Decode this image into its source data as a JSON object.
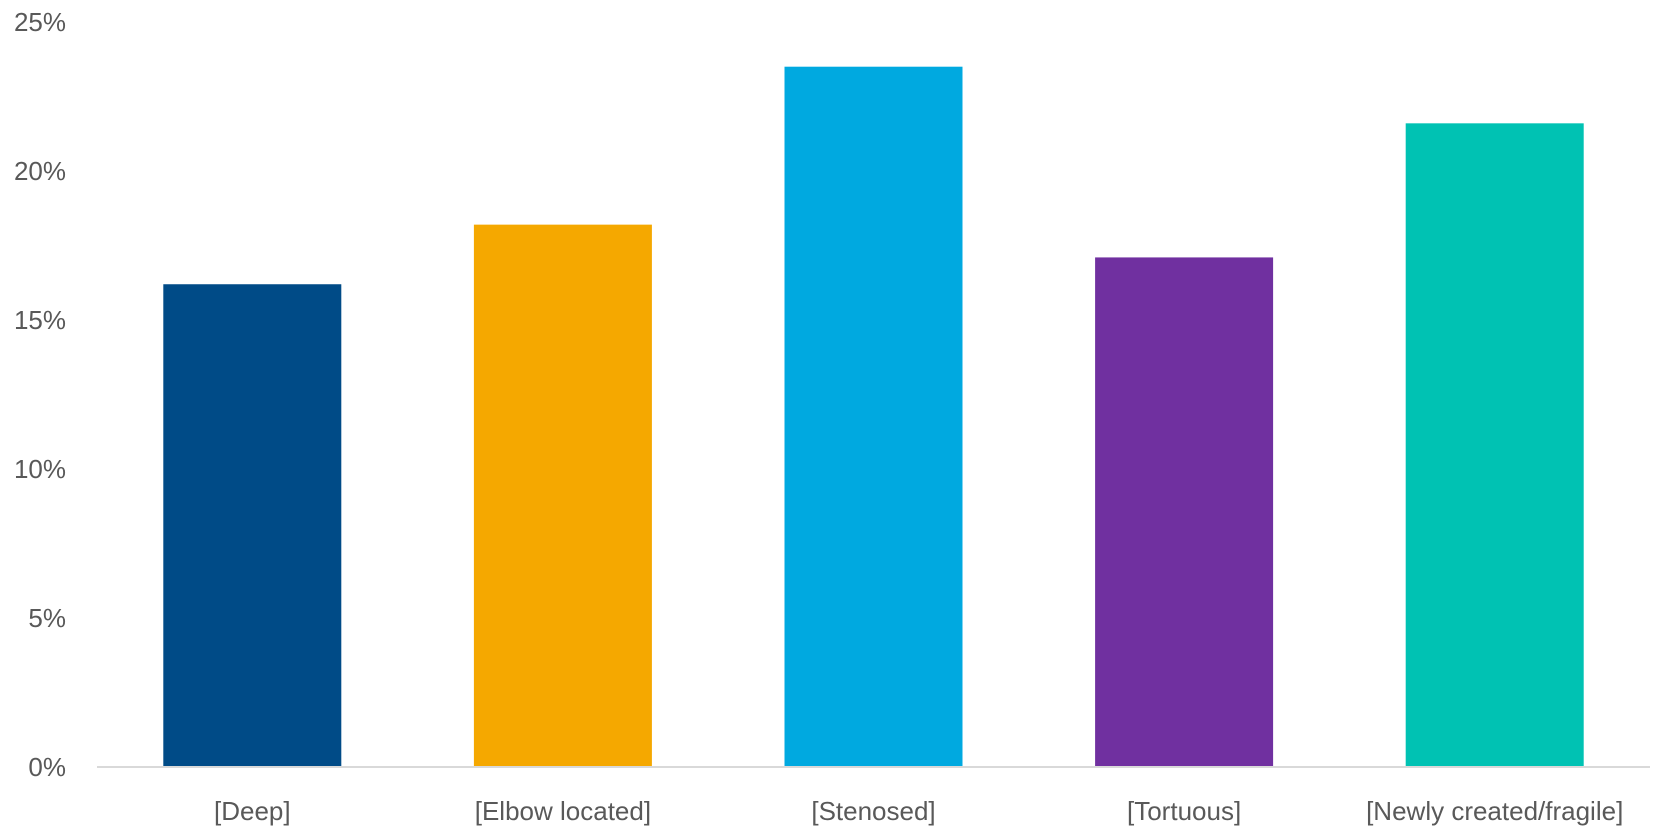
{
  "chart_data": {
    "type": "bar",
    "title": "",
    "xlabel": "",
    "ylabel": "",
    "ylim": [
      0,
      25
    ],
    "y_ticks": [
      "0%",
      "5%",
      "10%",
      "15%",
      "20%",
      "25%"
    ],
    "y_tick_values": [
      0,
      5,
      10,
      15,
      20,
      25
    ],
    "grid": false,
    "legend": "none",
    "categories": [
      "[Deep]",
      "[Elbow located]",
      "[Stenosed]",
      "[Tortuous]",
      "[Newly created/fragile]"
    ],
    "values": [
      16.2,
      18.2,
      23.5,
      17.1,
      21.6
    ],
    "colors": [
      "#004B87",
      "#F5A800",
      "#00A9E0",
      "#7030A0",
      "#00C2B3"
    ],
    "axis_color": "#D9D9D9",
    "text_color": "#595959"
  }
}
